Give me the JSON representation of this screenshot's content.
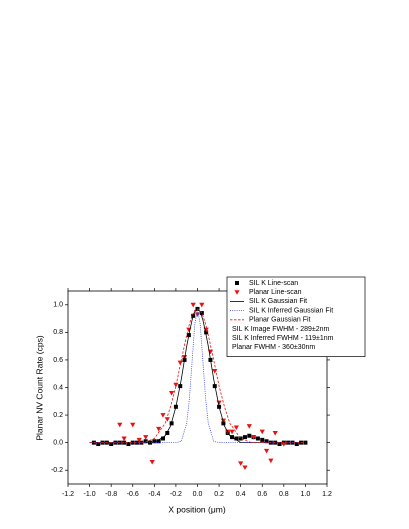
{
  "chart_data": {
    "type": "scatter-fit",
    "xlabel": "X position (μm)",
    "ylabel": "Planar NV Count Rate (cps)",
    "xlim": [
      -1.2,
      1.2
    ],
    "xticks": [
      {
        "value": -1.2,
        "label": "-1.2"
      },
      {
        "value": -1,
        "label": "-1.0"
      },
      -0.8,
      -0.6,
      -0.4,
      -0.2,
      {
        "value": 0,
        "label": "0.0"
      },
      0.2,
      0.4,
      0.6,
      0.8,
      {
        "value": 1,
        "label": "1.0"
      },
      1.2
    ],
    "ylim": [
      -0.3,
      1.1
    ],
    "yticks": [
      -0.2,
      {
        "value": 0,
        "label": "0.0"
      },
      0.2,
      0.4,
      0.6,
      0.8,
      {
        "value": 1,
        "label": "1.0"
      }
    ],
    "grid": false,
    "legend": "upper right",
    "series": [
      {
        "name": "SIL K Line-scan",
        "style": "square",
        "color": "#000000",
        "x": [
          -0.96,
          -0.92,
          -0.88,
          -0.84,
          -0.8,
          -0.76,
          -0.72,
          -0.68,
          -0.64,
          -0.6,
          -0.56,
          -0.52,
          -0.48,
          -0.44,
          -0.4,
          -0.36,
          -0.32,
          -0.28,
          -0.24,
          -0.2,
          -0.16,
          -0.12,
          -0.08,
          -0.04,
          0,
          0.04,
          0.08,
          0.12,
          0.16,
          0.2,
          0.24,
          0.28,
          0.32,
          0.36,
          0.4,
          0.44,
          0.48,
          0.52,
          0.56,
          0.6,
          0.64,
          0.68,
          0.72,
          0.76,
          0.8,
          0.84,
          0.88,
          0.92,
          0.96,
          1
        ],
        "values": [
          0,
          -0.01,
          0,
          0,
          -0.01,
          0,
          0,
          0,
          -0.01,
          0,
          0,
          0,
          0.01,
          0,
          0.01,
          0.01,
          0.03,
          0.07,
          0.14,
          0.26,
          0.41,
          0.6,
          0.78,
          0.92,
          0.97,
          0.94,
          0.8,
          0.6,
          0.41,
          0.26,
          0.14,
          0.07,
          0.04,
          0.03,
          0.03,
          0.04,
          0.05,
          0.04,
          0.03,
          0.02,
          0.01,
          0,
          0,
          -0.01,
          0,
          0,
          0,
          -0.01,
          0,
          0
        ]
      },
      {
        "name": "Planar Line-scan",
        "style": "triangle-down",
        "color": "#ee1111",
        "x": [
          -0.72,
          -0.68,
          -0.6,
          -0.54,
          -0.48,
          -0.42,
          -0.36,
          -0.32,
          -0.28,
          -0.24,
          -0.2,
          -0.16,
          -0.12,
          -0.08,
          -0.04,
          0,
          0.04,
          0.08,
          0.12,
          0.16,
          0.2,
          0.24,
          0.28,
          0.32,
          0.36,
          0.4,
          0.44,
          0.48,
          0.52,
          0.6,
          0.64,
          0.68,
          0.72,
          0.8
        ],
        "values": [
          0.13,
          0.03,
          0.13,
          0.02,
          0.04,
          -0.14,
          0.1,
          0.2,
          0.17,
          0.36,
          0.42,
          0.58,
          0.62,
          0.82,
          1,
          0.93,
          1,
          0.82,
          0.66,
          0.52,
          0.29,
          0.16,
          0.08,
          0.08,
          0.11,
          -0.15,
          -0.18,
          0.12,
          0.04,
          0.08,
          -0.06,
          -0.13,
          0.07,
          -0.01
        ]
      },
      {
        "name": "SIL K Gaussian Fit",
        "style": "solid",
        "color": "#000000",
        "x": [
          -1,
          -0.5,
          -0.4,
          -0.3,
          -0.25,
          -0.2,
          -0.15,
          -0.1,
          -0.075,
          -0.05,
          -0.025,
          0,
          0.025,
          0.05,
          0.075,
          0.1,
          0.15,
          0.2,
          0.25,
          0.3,
          0.4,
          0.5,
          1
        ],
        "values": [
          0,
          0,
          0,
          0.05,
          0.12,
          0.26,
          0.46,
          0.7,
          0.8,
          0.89,
          0.95,
          0.97,
          0.95,
          0.89,
          0.8,
          0.7,
          0.46,
          0.26,
          0.12,
          0.05,
          0,
          0,
          0
        ]
      },
      {
        "name": "SIL K Inferred Gaussian Fit",
        "style": "dotted",
        "color": "#3344ee",
        "x": [
          -1,
          -0.5,
          -0.4,
          -0.3,
          -0.25,
          -0.2,
          -0.15,
          -0.1,
          -0.075,
          -0.05,
          -0.025,
          0,
          0.025,
          0.05,
          0.075,
          0.1,
          0.15,
          0.2,
          0.25,
          0.3,
          0.4,
          0.5,
          1
        ],
        "values": [
          0,
          0,
          0,
          0,
          0,
          0,
          0.01,
          0.14,
          0.32,
          0.59,
          0.86,
          0.97,
          0.86,
          0.59,
          0.32,
          0.14,
          0.01,
          0,
          0,
          0,
          0,
          0,
          0
        ]
      },
      {
        "name": "Planar Gaussian Fit",
        "style": "dashed",
        "color": "#ee1111",
        "x": [
          -1,
          -0.5,
          -0.4,
          -0.3,
          -0.25,
          -0.2,
          -0.15,
          -0.1,
          -0.075,
          -0.05,
          -0.025,
          0,
          0.025,
          0.05,
          0.075,
          0.1,
          0.15,
          0.2,
          0.25,
          0.3,
          0.4,
          0.5,
          1
        ],
        "values": [
          0,
          0,
          0.03,
          0.14,
          0.26,
          0.41,
          0.6,
          0.78,
          0.86,
          0.92,
          0.96,
          0.97,
          0.96,
          0.92,
          0.86,
          0.78,
          0.6,
          0.41,
          0.26,
          0.14,
          0.03,
          0,
          0
        ]
      }
    ],
    "legend_notes": [
      "SIL K Image FWHM - 289±2nm",
      "SIL K Inferred FWHM - 119±1nm",
      "Planar FWHM - 360±30nm"
    ]
  }
}
